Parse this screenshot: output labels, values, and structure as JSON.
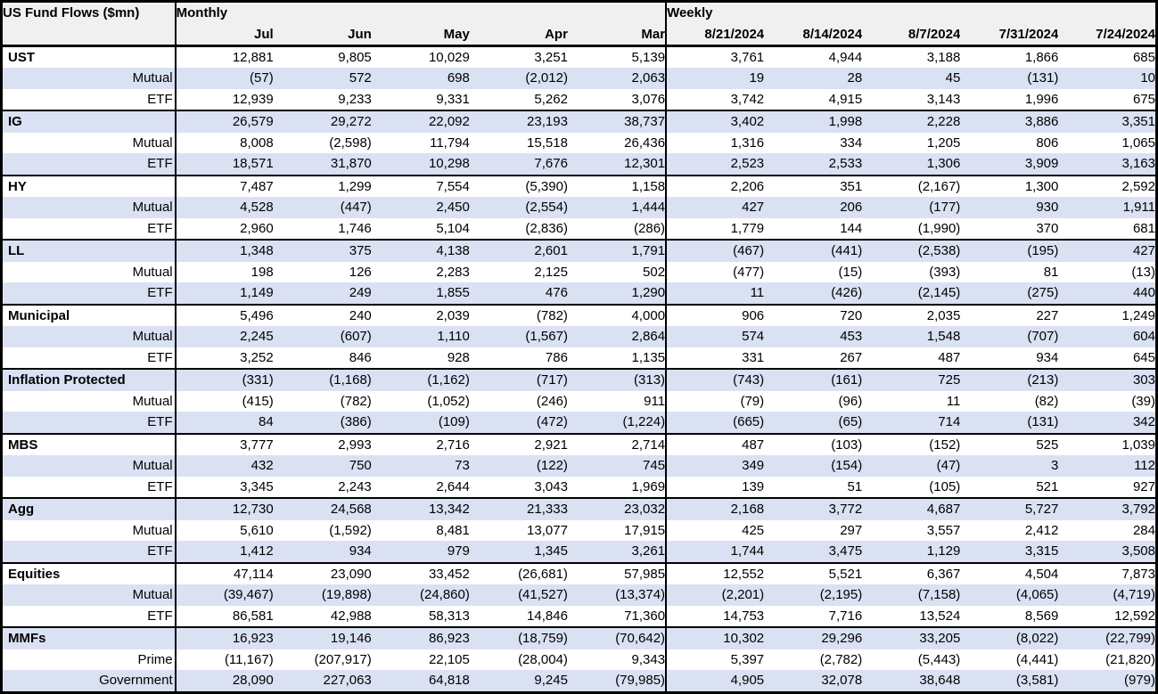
{
  "colors": {
    "stripe_row": "#D9E1F2",
    "header_bg": "#F0F0F0",
    "border": "#000000",
    "text": "#000000"
  },
  "chart_data": {
    "type": "table",
    "title": "US Fund Flows ($mn)",
    "column_groups": [
      {
        "label": "Monthly",
        "columns": [
          "Jul",
          "Jun",
          "May",
          "Apr",
          "Mar"
        ]
      },
      {
        "label": "Weekly",
        "columns": [
          "8/21/2024",
          "8/14/2024",
          "8/7/2024",
          "7/31/2024",
          "7/24/2024"
        ]
      }
    ],
    "groups": [
      {
        "rows": [
          {
            "label": "UST",
            "is_group_header": true,
            "monthly": [
              "12,881",
              "9,805",
              "10,029",
              "3,251",
              "5,139"
            ],
            "weekly": [
              "3,761",
              "4,944",
              "3,188",
              "1,866",
              "685"
            ]
          },
          {
            "label": "Mutual",
            "monthly": [
              "(57)",
              "572",
              "698",
              "(2,012)",
              "2,063"
            ],
            "weekly": [
              "19",
              "28",
              "45",
              "(131)",
              "10"
            ]
          },
          {
            "label": "ETF",
            "monthly": [
              "12,939",
              "9,233",
              "9,331",
              "5,262",
              "3,076"
            ],
            "weekly": [
              "3,742",
              "4,915",
              "3,143",
              "1,996",
              "675"
            ]
          }
        ]
      },
      {
        "rows": [
          {
            "label": "IG",
            "is_group_header": true,
            "monthly": [
              "26,579",
              "29,272",
              "22,092",
              "23,193",
              "38,737"
            ],
            "weekly": [
              "3,402",
              "1,998",
              "2,228",
              "3,886",
              "3,351"
            ]
          },
          {
            "label": "Mutual",
            "monthly": [
              "8,008",
              "(2,598)",
              "11,794",
              "15,518",
              "26,436"
            ],
            "weekly": [
              "1,316",
              "334",
              "1,205",
              "806",
              "1,065"
            ]
          },
          {
            "label": "ETF",
            "monthly": [
              "18,571",
              "31,870",
              "10,298",
              "7,676",
              "12,301"
            ],
            "weekly": [
              "2,523",
              "2,533",
              "1,306",
              "3,909",
              "3,163"
            ]
          }
        ]
      },
      {
        "rows": [
          {
            "label": "HY",
            "is_group_header": true,
            "monthly": [
              "7,487",
              "1,299",
              "7,554",
              "(5,390)",
              "1,158"
            ],
            "weekly": [
              "2,206",
              "351",
              "(2,167)",
              "1,300",
              "2,592"
            ]
          },
          {
            "label": "Mutual",
            "monthly": [
              "4,528",
              "(447)",
              "2,450",
              "(2,554)",
              "1,444"
            ],
            "weekly": [
              "427",
              "206",
              "(177)",
              "930",
              "1,911"
            ]
          },
          {
            "label": "ETF",
            "monthly": [
              "2,960",
              "1,746",
              "5,104",
              "(2,836)",
              "(286)"
            ],
            "weekly": [
              "1,779",
              "144",
              "(1,990)",
              "370",
              "681"
            ]
          }
        ]
      },
      {
        "rows": [
          {
            "label": "LL",
            "is_group_header": true,
            "monthly": [
              "1,348",
              "375",
              "4,138",
              "2,601",
              "1,791"
            ],
            "weekly": [
              "(467)",
              "(441)",
              "(2,538)",
              "(195)",
              "427"
            ]
          },
          {
            "label": "Mutual",
            "monthly": [
              "198",
              "126",
              "2,283",
              "2,125",
              "502"
            ],
            "weekly": [
              "(477)",
              "(15)",
              "(393)",
              "81",
              "(13)"
            ]
          },
          {
            "label": "ETF",
            "monthly": [
              "1,149",
              "249",
              "1,855",
              "476",
              "1,290"
            ],
            "weekly": [
              "11",
              "(426)",
              "(2,145)",
              "(275)",
              "440"
            ]
          }
        ]
      },
      {
        "rows": [
          {
            "label": "Municipal",
            "is_group_header": true,
            "monthly": [
              "5,496",
              "240",
              "2,039",
              "(782)",
              "4,000"
            ],
            "weekly": [
              "906",
              "720",
              "2,035",
              "227",
              "1,249"
            ]
          },
          {
            "label": "Mutual",
            "monthly": [
              "2,245",
              "(607)",
              "1,110",
              "(1,567)",
              "2,864"
            ],
            "weekly": [
              "574",
              "453",
              "1,548",
              "(707)",
              "604"
            ]
          },
          {
            "label": "ETF",
            "monthly": [
              "3,252",
              "846",
              "928",
              "786",
              "1,135"
            ],
            "weekly": [
              "331",
              "267",
              "487",
              "934",
              "645"
            ]
          }
        ]
      },
      {
        "rows": [
          {
            "label": "Inflation Protected",
            "is_group_header": true,
            "monthly": [
              "(331)",
              "(1,168)",
              "(1,162)",
              "(717)",
              "(313)"
            ],
            "weekly": [
              "(743)",
              "(161)",
              "725",
              "(213)",
              "303"
            ]
          },
          {
            "label": "Mutual",
            "monthly": [
              "(415)",
              "(782)",
              "(1,052)",
              "(246)",
              "911"
            ],
            "weekly": [
              "(79)",
              "(96)",
              "11",
              "(82)",
              "(39)"
            ]
          },
          {
            "label": "ETF",
            "monthly": [
              "84",
              "(386)",
              "(109)",
              "(472)",
              "(1,224)"
            ],
            "weekly": [
              "(665)",
              "(65)",
              "714",
              "(131)",
              "342"
            ]
          }
        ]
      },
      {
        "rows": [
          {
            "label": "MBS",
            "is_group_header": true,
            "monthly": [
              "3,777",
              "2,993",
              "2,716",
              "2,921",
              "2,714"
            ],
            "weekly": [
              "487",
              "(103)",
              "(152)",
              "525",
              "1,039"
            ]
          },
          {
            "label": "Mutual",
            "monthly": [
              "432",
              "750",
              "73",
              "(122)",
              "745"
            ],
            "weekly": [
              "349",
              "(154)",
              "(47)",
              "3",
              "112"
            ]
          },
          {
            "label": "ETF",
            "monthly": [
              "3,345",
              "2,243",
              "2,644",
              "3,043",
              "1,969"
            ],
            "weekly": [
              "139",
              "51",
              "(105)",
              "521",
              "927"
            ]
          }
        ]
      },
      {
        "rows": [
          {
            "label": "Agg",
            "is_group_header": true,
            "monthly": [
              "12,730",
              "24,568",
              "13,342",
              "21,333",
              "23,032"
            ],
            "weekly": [
              "2,168",
              "3,772",
              "4,687",
              "5,727",
              "3,792"
            ]
          },
          {
            "label": "Mutual",
            "monthly": [
              "5,610",
              "(1,592)",
              "8,481",
              "13,077",
              "17,915"
            ],
            "weekly": [
              "425",
              "297",
              "3,557",
              "2,412",
              "284"
            ]
          },
          {
            "label": "ETF",
            "monthly": [
              "1,412",
              "934",
              "979",
              "1,345",
              "3,261"
            ],
            "weekly": [
              "1,744",
              "3,475",
              "1,129",
              "3,315",
              "3,508"
            ]
          }
        ]
      },
      {
        "rows": [
          {
            "label": "Equities",
            "is_group_header": true,
            "monthly": [
              "47,114",
              "23,090",
              "33,452",
              "(26,681)",
              "57,985"
            ],
            "weekly": [
              "12,552",
              "5,521",
              "6,367",
              "4,504",
              "7,873"
            ]
          },
          {
            "label": "Mutual",
            "monthly": [
              "(39,467)",
              "(19,898)",
              "(24,860)",
              "(41,527)",
              "(13,374)"
            ],
            "weekly": [
              "(2,201)",
              "(2,195)",
              "(7,158)",
              "(4,065)",
              "(4,719)"
            ]
          },
          {
            "label": "ETF",
            "monthly": [
              "86,581",
              "42,988",
              "58,313",
              "14,846",
              "71,360"
            ],
            "weekly": [
              "14,753",
              "7,716",
              "13,524",
              "8,569",
              "12,592"
            ]
          }
        ]
      },
      {
        "rows": [
          {
            "label": "MMFs",
            "is_group_header": true,
            "monthly": [
              "16,923",
              "19,146",
              "86,923",
              "(18,759)",
              "(70,642)"
            ],
            "weekly": [
              "10,302",
              "29,296",
              "33,205",
              "(8,022)",
              "(22,799)"
            ]
          },
          {
            "label": "Prime",
            "monthly": [
              "(11,167)",
              "(207,917)",
              "22,105",
              "(28,004)",
              "9,343"
            ],
            "weekly": [
              "5,397",
              "(2,782)",
              "(5,443)",
              "(4,441)",
              "(21,820)"
            ]
          },
          {
            "label": "Government",
            "monthly": [
              "28,090",
              "227,063",
              "64,818",
              "9,245",
              "(79,985)"
            ],
            "weekly": [
              "4,905",
              "32,078",
              "38,648",
              "(3,581)",
              "(979)"
            ]
          }
        ]
      }
    ]
  }
}
